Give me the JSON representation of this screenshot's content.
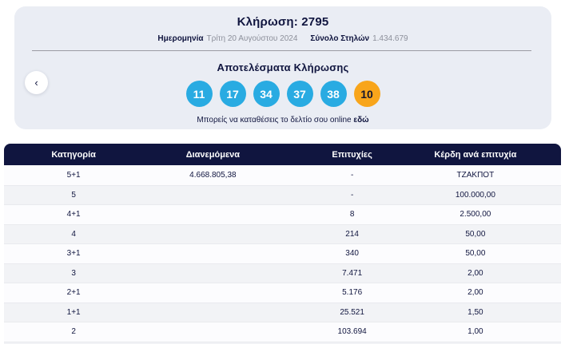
{
  "panel": {
    "draw_title": "Κλήρωση: 2795",
    "date_label": "Ημερομηνία",
    "date_value": "Τρίτη 20 Αυγούστου 2024",
    "columns_label": "Σύνολο Στηλών",
    "columns_value": "1.434.679",
    "results_heading": "Αποτελέσματα Κλήρωσης",
    "online_text": "Μπορείς να καταθέσεις το δελτίο σου online",
    "online_link_label": "εδώ",
    "prev_button_glyph": "‹"
  },
  "draw_numbers": {
    "main": [
      "11",
      "17",
      "34",
      "37",
      "38"
    ],
    "bonus": "10"
  },
  "table": {
    "headers": [
      "Κατηγορία",
      "Διανεμόμενα",
      "Επιτυχίες",
      "Κέρδη ανά επιτυχία"
    ],
    "rows": [
      {
        "category": "5+1",
        "distributed": "4.668.805,38",
        "winners": "-",
        "prize": "ΤΖΑΚΠΟΤ"
      },
      {
        "category": "5",
        "distributed": "",
        "winners": "-",
        "prize": "100.000,00"
      },
      {
        "category": "4+1",
        "distributed": "",
        "winners": "8",
        "prize": "2.500,00"
      },
      {
        "category": "4",
        "distributed": "",
        "winners": "214",
        "prize": "50,00"
      },
      {
        "category": "3+1",
        "distributed": "",
        "winners": "340",
        "prize": "50,00"
      },
      {
        "category": "3",
        "distributed": "",
        "winners": "7.471",
        "prize": "2,00"
      },
      {
        "category": "2+1",
        "distributed": "",
        "winners": "5.176",
        "prize": "2,00"
      },
      {
        "category": "1+1",
        "distributed": "",
        "winners": "25.521",
        "prize": "1,50"
      },
      {
        "category": "2",
        "distributed": "",
        "winners": "103.694",
        "prize": "1,00"
      }
    ]
  },
  "colors": {
    "navy": "#10153f",
    "panel_bg": "#eaedf4",
    "ball_blue": "#29abe2",
    "ball_orange": "#f8a51b",
    "stripe": "#f2f3f6",
    "muted_text": "#8d909b"
  }
}
